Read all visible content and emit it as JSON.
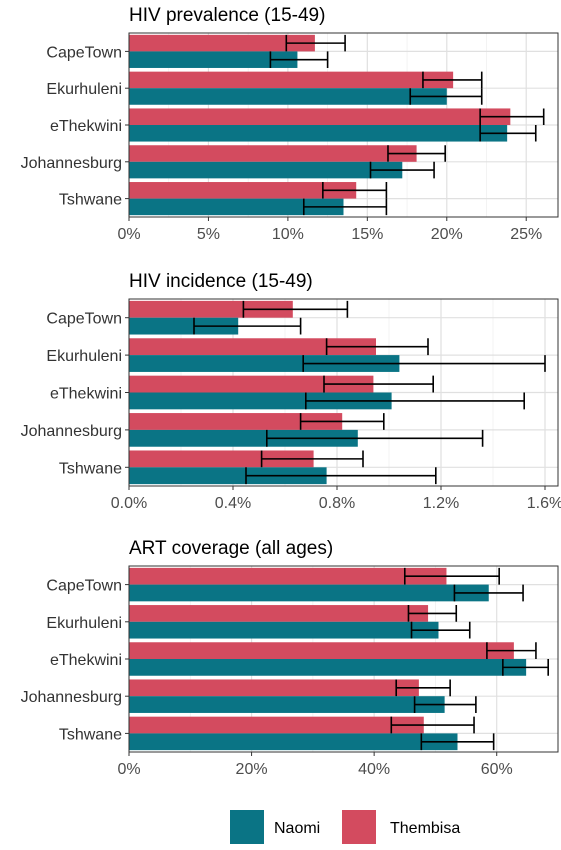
{
  "colors": {
    "naomi": "#0a7485",
    "thembisa": "#d34b5f"
  },
  "legend": {
    "items": [
      "Naomi",
      "Thembisa"
    ],
    "position": "bottom"
  },
  "chart_data": [
    {
      "type": "bar",
      "orientation": "horizontal",
      "title": "HIV prevalence (15-49)",
      "categories": [
        "CapeTown",
        "Ekurhuleni",
        "eThekwini",
        "Johannesburg",
        "Tshwane"
      ],
      "xlim": [
        0,
        0.27
      ],
      "ticks": [
        0,
        0.05,
        0.1,
        0.15,
        0.2,
        0.25
      ],
      "tick_labels": [
        "0%",
        "5%",
        "10%",
        "15%",
        "20%",
        "25%"
      ],
      "grid": true,
      "series": [
        {
          "name": "Thembisa",
          "values": [
            0.117,
            0.204,
            0.24,
            0.181,
            0.143
          ],
          "lower": [
            0.099,
            0.185,
            0.221,
            0.163,
            0.122
          ],
          "upper": [
            0.136,
            0.222,
            0.261,
            0.199,
            0.162
          ]
        },
        {
          "name": "Naomi",
          "values": [
            0.106,
            0.2,
            0.238,
            0.172,
            0.135
          ],
          "lower": [
            0.089,
            0.177,
            0.221,
            0.152,
            0.11
          ],
          "upper": [
            0.125,
            0.222,
            0.256,
            0.192,
            0.162
          ]
        }
      ]
    },
    {
      "type": "bar",
      "orientation": "horizontal",
      "title": "HIV incidence (15-49)",
      "categories": [
        "CapeTown",
        "Ekurhuleni",
        "eThekwini",
        "Johannesburg",
        "Tshwane"
      ],
      "xlim": [
        0,
        0.0165
      ],
      "ticks": [
        0,
        0.004,
        0.008,
        0.012,
        0.016
      ],
      "tick_labels": [
        "0.0%",
        "0.4%",
        "0.8%",
        "1.2%",
        "1.6%"
      ],
      "grid": true,
      "series": [
        {
          "name": "Thembisa",
          "values": [
            0.0063,
            0.0095,
            0.0094,
            0.0082,
            0.0071
          ],
          "lower": [
            0.0044,
            0.0076,
            0.0075,
            0.0066,
            0.0051
          ],
          "upper": [
            0.0084,
            0.0115,
            0.0117,
            0.0098,
            0.009
          ]
        },
        {
          "name": "Naomi",
          "values": [
            0.0042,
            0.0104,
            0.0101,
            0.0088,
            0.0076
          ],
          "lower": [
            0.0025,
            0.0067,
            0.0068,
            0.0053,
            0.0045
          ],
          "upper": [
            0.0066,
            0.016,
            0.0152,
            0.0136,
            0.0118
          ]
        }
      ]
    },
    {
      "type": "bar",
      "orientation": "horizontal",
      "title": "ART coverage (all ages)",
      "categories": [
        "CapeTown",
        "Ekurhuleni",
        "eThekwini",
        "Johannesburg",
        "Tshwane"
      ],
      "xlim": [
        0,
        0.7
      ],
      "ticks": [
        0,
        0.2,
        0.4,
        0.6
      ],
      "tick_labels": [
        "0%",
        "20%",
        "40%",
        "60%"
      ],
      "grid": true,
      "series": [
        {
          "name": "Thembisa",
          "values": [
            0.518,
            0.488,
            0.628,
            0.473,
            0.481
          ],
          "lower": [
            0.45,
            0.456,
            0.584,
            0.436,
            0.428
          ],
          "upper": [
            0.604,
            0.534,
            0.664,
            0.524,
            0.563
          ]
        },
        {
          "name": "Naomi",
          "values": [
            0.587,
            0.505,
            0.648,
            0.515,
            0.536
          ],
          "lower": [
            0.531,
            0.461,
            0.61,
            0.466,
            0.477
          ],
          "upper": [
            0.643,
            0.556,
            0.684,
            0.566,
            0.595
          ]
        }
      ]
    }
  ]
}
